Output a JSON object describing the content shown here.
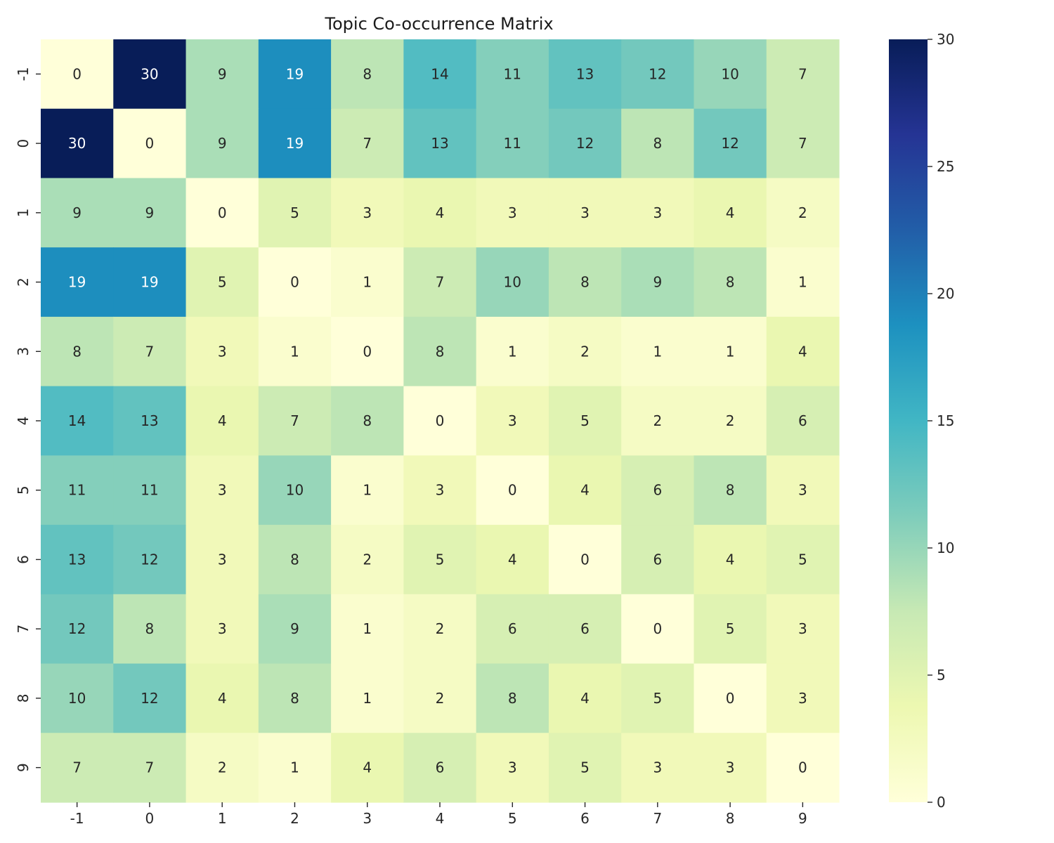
{
  "chart_data": {
    "type": "heatmap",
    "title": "Topic Co-occurrence Matrix",
    "xlabel": "",
    "ylabel": "",
    "x_labels": [
      "-1",
      "0",
      "1",
      "2",
      "3",
      "4",
      "5",
      "6",
      "7",
      "8",
      "9"
    ],
    "y_labels": [
      "-1",
      "0",
      "1",
      "2",
      "3",
      "4",
      "5",
      "6",
      "7",
      "8",
      "9"
    ],
    "values": [
      [
        0,
        30,
        9,
        19,
        8,
        14,
        11,
        13,
        12,
        10,
        7
      ],
      [
        30,
        0,
        9,
        19,
        7,
        13,
        11,
        12,
        8,
        12,
        7
      ],
      [
        9,
        9,
        0,
        5,
        3,
        4,
        3,
        3,
        3,
        4,
        2
      ],
      [
        19,
        19,
        5,
        0,
        1,
        7,
        10,
        8,
        9,
        8,
        1
      ],
      [
        8,
        7,
        3,
        1,
        0,
        8,
        1,
        2,
        1,
        1,
        4
      ],
      [
        14,
        13,
        4,
        7,
        8,
        0,
        3,
        5,
        2,
        2,
        6
      ],
      [
        11,
        11,
        3,
        10,
        1,
        3,
        0,
        4,
        6,
        8,
        3
      ],
      [
        13,
        12,
        3,
        8,
        2,
        5,
        4,
        0,
        6,
        4,
        5
      ],
      [
        12,
        8,
        3,
        9,
        1,
        2,
        6,
        6,
        0,
        5,
        3
      ],
      [
        10,
        12,
        4,
        8,
        1,
        2,
        8,
        4,
        5,
        0,
        3
      ],
      [
        7,
        7,
        2,
        1,
        4,
        6,
        3,
        5,
        3,
        3,
        0
      ]
    ],
    "colormap": "YlGnBu",
    "colormap_stops": [
      "#ffffd9",
      "#edf8b1",
      "#c7e9b4",
      "#7fcdbb",
      "#41b6c4",
      "#1d91c0",
      "#225ea8",
      "#253494",
      "#081d58"
    ],
    "vmin": 0,
    "vmax": 30,
    "colorbar_ticks": [
      "0",
      "5",
      "10",
      "15",
      "20",
      "25",
      "30"
    ],
    "annot": true
  }
}
